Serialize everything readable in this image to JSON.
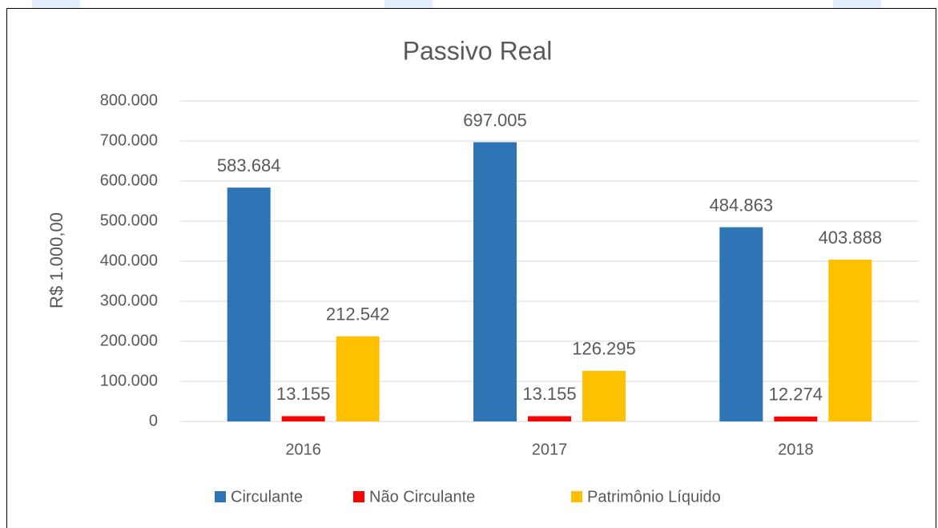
{
  "chart_data": {
    "type": "bar",
    "title": "Passivo Real",
    "y_label": "R$ 1.000,00",
    "categories": [
      "2016",
      "2017",
      "2018"
    ],
    "series": [
      {
        "name": "Circulante",
        "color": "#2e75b6",
        "values": [
          583684,
          697005,
          484863
        ],
        "value_labels": [
          "583.684",
          "697.005",
          "484.863"
        ]
      },
      {
        "name": "Não Circulante",
        "color": "#ff0000",
        "values": [
          13155,
          13155,
          12274
        ],
        "value_labels": [
          "13.155",
          "13.155",
          "12.274"
        ]
      },
      {
        "name": "Patrimônio Líquido",
        "color": "#ffc000",
        "values": [
          212542,
          126295,
          403888
        ],
        "value_labels": [
          "212.542",
          "126.295",
          "403.888"
        ]
      }
    ],
    "ylim": [
      0,
      800000
    ],
    "yticks": [
      0,
      {
        "value": 100000,
        "label": "100.000"
      },
      {
        "value": 200000,
        "label": "200.000"
      },
      {
        "value": 300000,
        "label": "300.000"
      },
      {
        "value": 400000,
        "label": "400.000"
      },
      {
        "value": 500000,
        "label": "500.000"
      },
      {
        "value": 600000,
        "label": "600.000"
      },
      {
        "value": 700000,
        "label": "700.000"
      },
      {
        "value": 800000,
        "label": "800.000"
      }
    ],
    "grid": true,
    "legend": "bottom"
  }
}
